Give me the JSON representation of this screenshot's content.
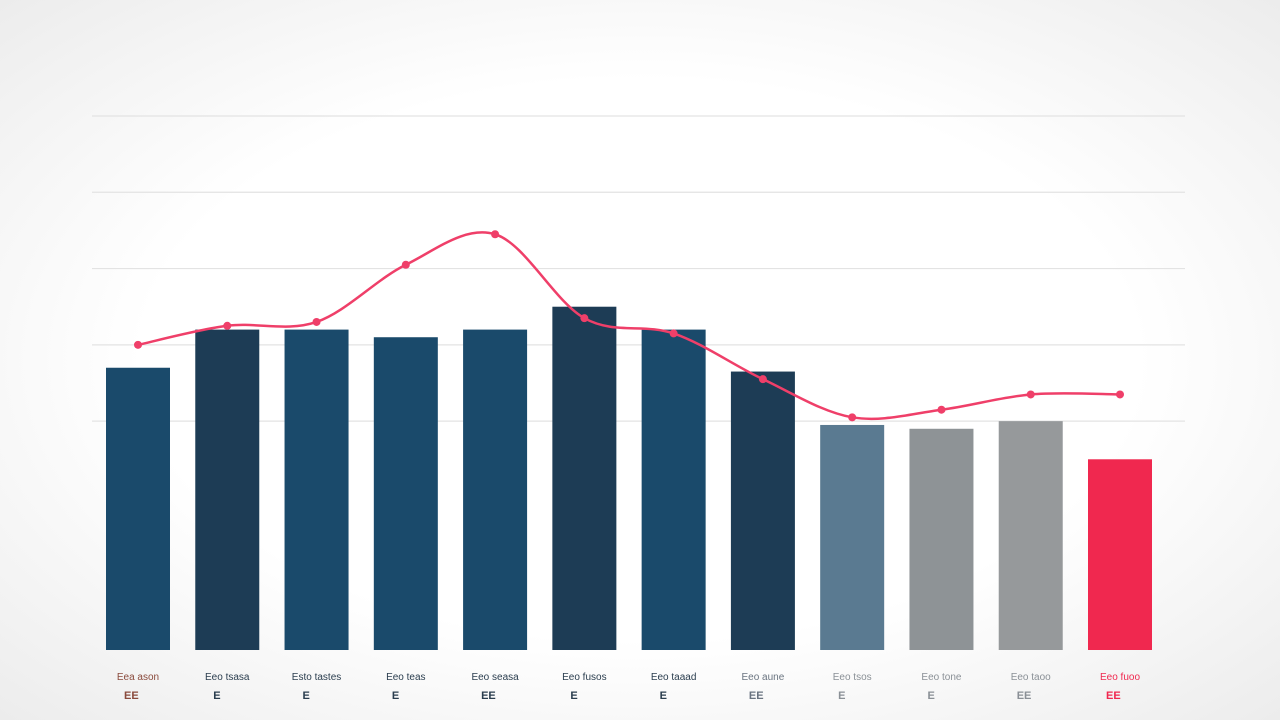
{
  "chart_data": {
    "type": "bar",
    "title": "",
    "xlabel": "",
    "ylabel": "",
    "ylim": [
      0,
      7
    ],
    "grid": true,
    "legend": "none",
    "categories": [
      "Eea ason",
      "Eeo tsasa",
      "Esto tastes",
      "Eeo teas",
      "Eeo seasa",
      "Eeo fusos",
      "Eeo taaad",
      "Eeo aune",
      "Eeo tsos",
      "Eeo tone",
      "Eeo taoo",
      "Eeo fuoo"
    ],
    "value_labels": [
      "ЕЕ",
      "E",
      "E",
      "E",
      "ЕE",
      "E",
      "E",
      "EE",
      "E",
      "E",
      "EE",
      "EE"
    ],
    "series": [
      {
        "type": "bar",
        "values": [
          3.7,
          4.2,
          4.2,
          4.1,
          4.2,
          4.5,
          4.2,
          3.65,
          2.95,
          2.9,
          3.0,
          2.5
        ]
      },
      {
        "type": "line",
        "values": [
          4.0,
          4.25,
          4.3,
          5.05,
          5.45,
          4.35,
          4.15,
          3.55,
          3.05,
          3.15,
          3.35,
          3.35
        ]
      }
    ],
    "colors": {
      "bars": [
        "#1a4a6b",
        "#1d3c55",
        "#1a4a6b",
        "#1a4a6b",
        "#1a4a6b",
        "#1d3c55",
        "#1a4a6b",
        "#1d3c55",
        "#5a7a91",
        "#8e9396",
        "#96999b",
        "#f0284f"
      ],
      "line": "#ef3f69",
      "grid": "#e3e3e3",
      "cat_label": [
        "#8a4a3c",
        "#2a3d4e",
        "#2a3d4e",
        "#2a3d4e",
        "#2a3d4e",
        "#2a3d4e",
        "#2a3d4e",
        "#6a7480",
        "#8a9096",
        "#8a9096",
        "#8a9096",
        "#f0284f"
      ]
    }
  }
}
